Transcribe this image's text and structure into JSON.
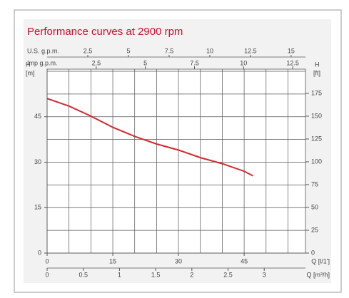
{
  "chart_data": {
    "type": "line",
    "title": "Performance curves at 2900 rpm",
    "y_label": "H",
    "y_unit": "[m]",
    "y2_label": "H",
    "y2_unit": "[ft]",
    "x_label": "Q [l/1']",
    "x2_label": "Q [m³/h]",
    "x3_label": "U.S. g.p.m.",
    "x4_label": "Imp g.p.m.",
    "x": [
      0,
      5,
      10,
      15,
      20,
      25,
      30,
      35,
      40,
      45,
      47
    ],
    "series": [
      {
        "color": "#d7282f",
        "values": [
          51,
          48.5,
          45.2,
          41.5,
          38.5,
          36,
          34,
          31.5,
          29.5,
          27,
          25.5
        ]
      }
    ],
    "xlim": [
      0,
      59
    ],
    "xticks": [
      0,
      15,
      30,
      45
    ],
    "ylim": [
      0,
      60.7
    ],
    "yticks": [
      0,
      15,
      30,
      45
    ],
    "y2lim": [
      0,
      201.5
    ],
    "y2ticks": [
      0,
      25,
      50,
      75,
      100,
      125,
      150,
      175
    ],
    "x2lim": [
      0,
      3.57
    ],
    "x2ticks": [
      0,
      0.5,
      1,
      1.5,
      2,
      2.5,
      3
    ],
    "x3lim": [
      0,
      15.88
    ],
    "x3ticks": [
      2.5,
      5,
      7.5,
      10,
      12.5,
      15
    ],
    "x4lim": [
      0,
      13.15
    ],
    "x4ticks": [
      2.5,
      5,
      7.5,
      10,
      12.5
    ],
    "grid": true,
    "grid_x": [
      0,
      5,
      10,
      15,
      20,
      25,
      30,
      35,
      40,
      45,
      50,
      55
    ],
    "grid_y": [
      0,
      7.5,
      15,
      22.5,
      30,
      37.5,
      45,
      52.5,
      60
    ]
  }
}
